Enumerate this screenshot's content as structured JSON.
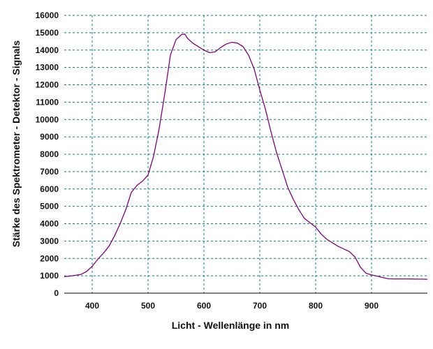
{
  "chart_data": {
    "type": "line",
    "title": "",
    "xlabel": "Licht  -  Wellenlänge  in  nm",
    "ylabel": "Stärke  des  Spektrometer  -  Detektor  -  Signals",
    "xlim": [
      350,
      1000
    ],
    "ylim": [
      0,
      16000
    ],
    "xticks": [
      400,
      500,
      600,
      700,
      800,
      900
    ],
    "yticks": [
      0,
      1000,
      2000,
      3000,
      4000,
      5000,
      6000,
      7000,
      8000,
      9000,
      10000,
      11000,
      12000,
      13000,
      14000,
      15000,
      16000
    ],
    "grid": true,
    "legend": "none",
    "colors": {
      "line": "#800080",
      "grid": "#008080",
      "axis": "#000000"
    },
    "series": [
      {
        "x": [
          350,
          360,
          370,
          380,
          390,
          400,
          410,
          420,
          430,
          440,
          450,
          460,
          470,
          480,
          490,
          500,
          510,
          520,
          530,
          540,
          550,
          560,
          566,
          570,
          580,
          590,
          600,
          610,
          620,
          630,
          640,
          650,
          660,
          670,
          680,
          690,
          700,
          710,
          720,
          730,
          740,
          750,
          760,
          770,
          780,
          790,
          800,
          810,
          820,
          830,
          840,
          850,
          860,
          870,
          880,
          890,
          900,
          910,
          920,
          930,
          940,
          950,
          960,
          970,
          980,
          990,
          1000
        ],
        "y": [
          950,
          980,
          1030,
          1080,
          1250,
          1550,
          1950,
          2300,
          2700,
          3300,
          4000,
          4800,
          5800,
          6200,
          6450,
          6800,
          7900,
          9500,
          11500,
          13700,
          14600,
          14900,
          14920,
          14700,
          14400,
          14200,
          14000,
          13850,
          13900,
          14150,
          14350,
          14450,
          14400,
          14200,
          13700,
          12900,
          11700,
          10600,
          9300,
          8100,
          7100,
          6100,
          5400,
          4800,
          4300,
          4050,
          3800,
          3400,
          3100,
          2900,
          2700,
          2550,
          2400,
          2100,
          1500,
          1150,
          1050,
          980,
          900,
          830,
          820,
          820,
          820,
          820,
          810,
          810,
          800
        ]
      }
    ]
  }
}
